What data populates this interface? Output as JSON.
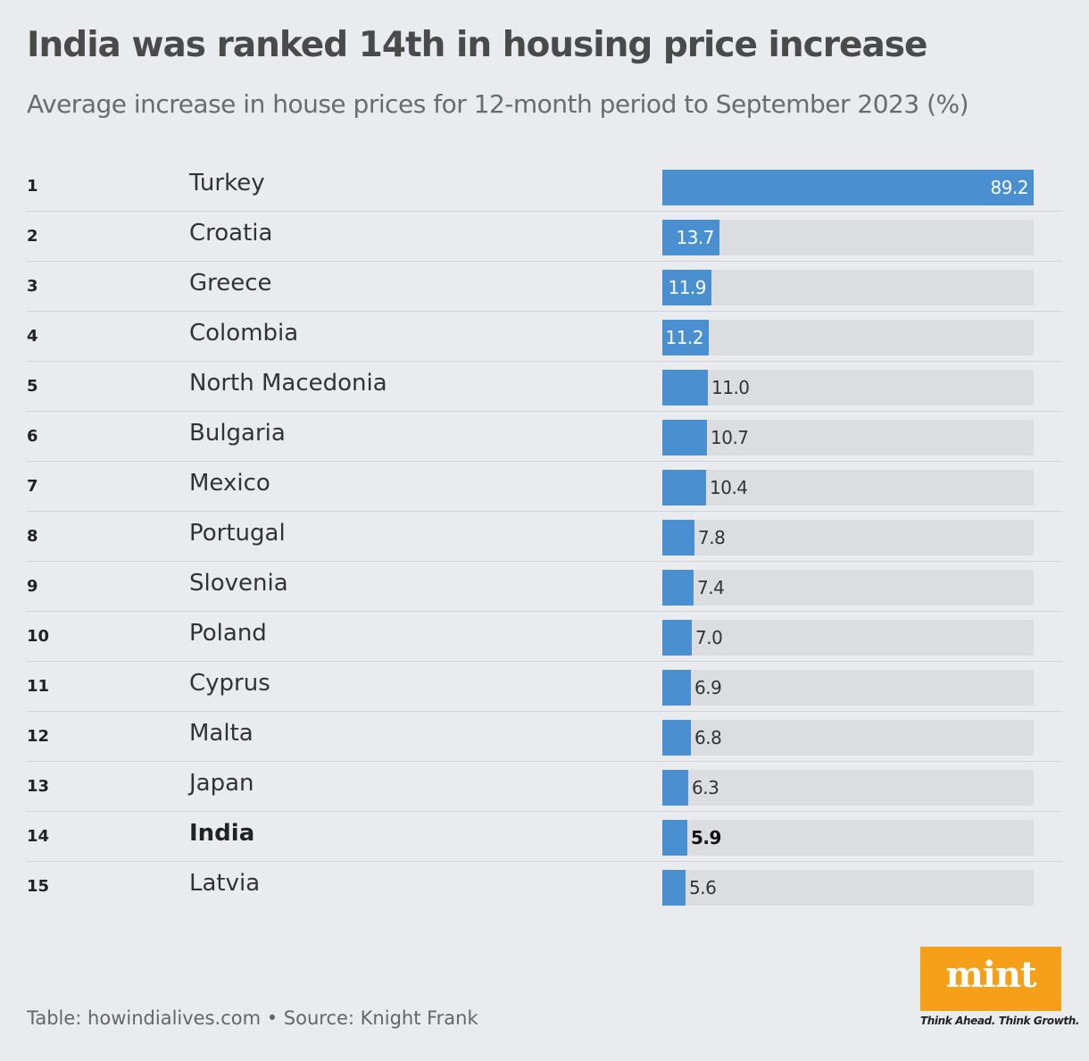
{
  "title": "India was ranked 14th in housing price increase",
  "subtitle": "Average increase in house prices for 12-month period to September 2023 (%)",
  "footer": "Table: howindialives.com • Source: Knight Frank",
  "logo": {
    "text": "mint",
    "tagline": "Think Ahead. Think Growth.",
    "color": "#f6a01a"
  },
  "colors": {
    "bar": "#4a90d0",
    "track": "#dbdde1",
    "background": "#e9ebee"
  },
  "chart_data": {
    "type": "bar",
    "orientation": "horizontal",
    "title": "India was ranked 14th in housing price increase",
    "subtitle": "Average increase in house prices for 12-month period to September 2023 (%)",
    "xlim": [
      0,
      89.2
    ],
    "grid": false,
    "highlight": "India",
    "rows": [
      {
        "rank": "1",
        "country": "Turkey",
        "value": 89.2,
        "label": "89.2"
      },
      {
        "rank": "2",
        "country": "Croatia",
        "value": 13.7,
        "label": "13.7"
      },
      {
        "rank": "3",
        "country": "Greece",
        "value": 11.9,
        "label": "11.9"
      },
      {
        "rank": "4",
        "country": "Colombia",
        "value": 11.2,
        "label": "11.2"
      },
      {
        "rank": "5",
        "country": "North Macedonia",
        "value": 11.0,
        "label": "11.0"
      },
      {
        "rank": "6",
        "country": "Bulgaria",
        "value": 10.7,
        "label": "10.7"
      },
      {
        "rank": "7",
        "country": "Mexico",
        "value": 10.4,
        "label": "10.4"
      },
      {
        "rank": "8",
        "country": "Portugal",
        "value": 7.8,
        "label": "7.8"
      },
      {
        "rank": "9",
        "country": "Slovenia",
        "value": 7.4,
        "label": "7.4"
      },
      {
        "rank": "10",
        "country": "Poland",
        "value": 7.0,
        "label": "7.0"
      },
      {
        "rank": "11",
        "country": "Cyprus",
        "value": 6.9,
        "label": "6.9"
      },
      {
        "rank": "12",
        "country": "Malta",
        "value": 6.8,
        "label": "6.8"
      },
      {
        "rank": "13",
        "country": "Japan",
        "value": 6.3,
        "label": "6.3"
      },
      {
        "rank": "14",
        "country": "India",
        "value": 5.9,
        "label": "5.9"
      },
      {
        "rank": "15",
        "country": "Latvia",
        "value": 5.6,
        "label": "5.6"
      }
    ]
  }
}
